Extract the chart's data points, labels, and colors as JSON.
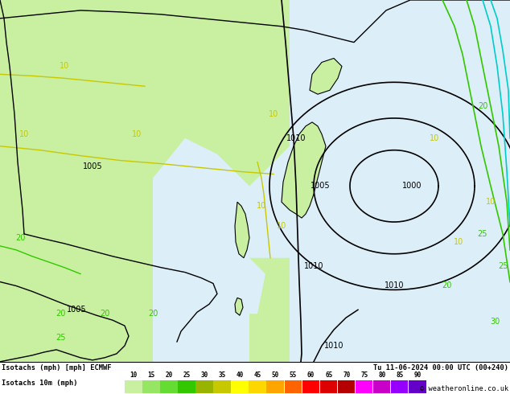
{
  "title_left": "Isotachs (mph) [mph] ECMWF",
  "title_right": "Tu 11-06-2024 00:00 UTC (00+240)",
  "legend_label": "Isotachs 10m (mph)",
  "legend_values": [
    10,
    15,
    20,
    25,
    30,
    35,
    40,
    45,
    50,
    55,
    60,
    65,
    70,
    75,
    80,
    85,
    90
  ],
  "legend_colors": [
    "#c8f0a0",
    "#96e664",
    "#64dc32",
    "#32c800",
    "#96b400",
    "#c8c800",
    "#ffff00",
    "#ffd700",
    "#ffa500",
    "#ff6400",
    "#ff0000",
    "#dc0000",
    "#b40000",
    "#ff00ff",
    "#c800c8",
    "#9600ff",
    "#6400c8"
  ],
  "copyright_text": "© weatheronline.co.uk",
  "fig_width": 6.34,
  "fig_height": 4.9,
  "dpi": 100,
  "map_bg_left": "#c8f0a0",
  "map_bg_right": "#e0f0f8",
  "sea_color": "#dceef8",
  "land_color": "#c8f0a0"
}
